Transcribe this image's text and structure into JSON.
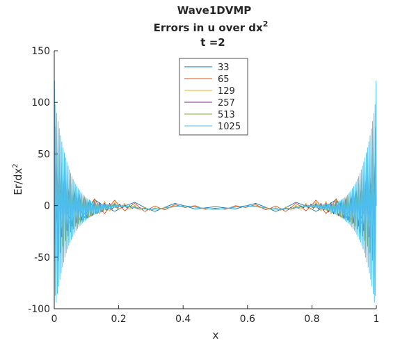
{
  "chart_data": {
    "type": "line",
    "title_lines": [
      "Wave1DVMP",
      "Errors in u over dx",
      "t =2"
    ],
    "title_superscript": "2",
    "xlabel": "x",
    "ylabel": "Er/dx",
    "ylabel_superscript": "2",
    "xlim": [
      0,
      1
    ],
    "ylim": [
      -100,
      150
    ],
    "xticks": [
      0,
      0.2,
      0.4,
      0.6,
      0.8,
      1
    ],
    "xtick_labels": [
      "0",
      "0.2",
      "0.4",
      "0.6",
      "0.8",
      "1"
    ],
    "yticks": [
      -100,
      -50,
      0,
      50,
      100,
      150
    ],
    "ytick_labels": [
      "-100",
      "-50",
      "0",
      "50",
      "100",
      "150"
    ],
    "grid": false,
    "legend_position": "top-center",
    "series": [
      {
        "name": "33",
        "color": "#0072bd",
        "n": 33,
        "edge_peak": 12,
        "inner_trough": -8,
        "mid_level": -2,
        "wave_mult": 1.0
      },
      {
        "name": "65",
        "color": "#d95319",
        "n": 65,
        "edge_peak": 22,
        "inner_trough": -12,
        "mid_level": -2,
        "wave_mult": 1.0
      },
      {
        "name": "129",
        "color": "#edb120",
        "n": 129,
        "edge_peak": 33,
        "inner_trough": -18,
        "mid_level": -2,
        "wave_mult": 1.0
      },
      {
        "name": "257",
        "color": "#7e2f8e",
        "n": 257,
        "edge_peak": 49,
        "inner_trough": -33,
        "mid_level": -2,
        "wave_mult": 1.0
      },
      {
        "name": "513",
        "color": "#77ac30",
        "n": 513,
        "edge_peak": 76,
        "inner_trough": -53,
        "mid_level": -2,
        "wave_mult": 1.0
      },
      {
        "name": "1025",
        "color": "#4dbeee",
        "n": 1025,
        "edge_peak": 121,
        "inner_trough": -87,
        "mid_level": -2,
        "wave_mult": 1.0
      }
    ]
  }
}
